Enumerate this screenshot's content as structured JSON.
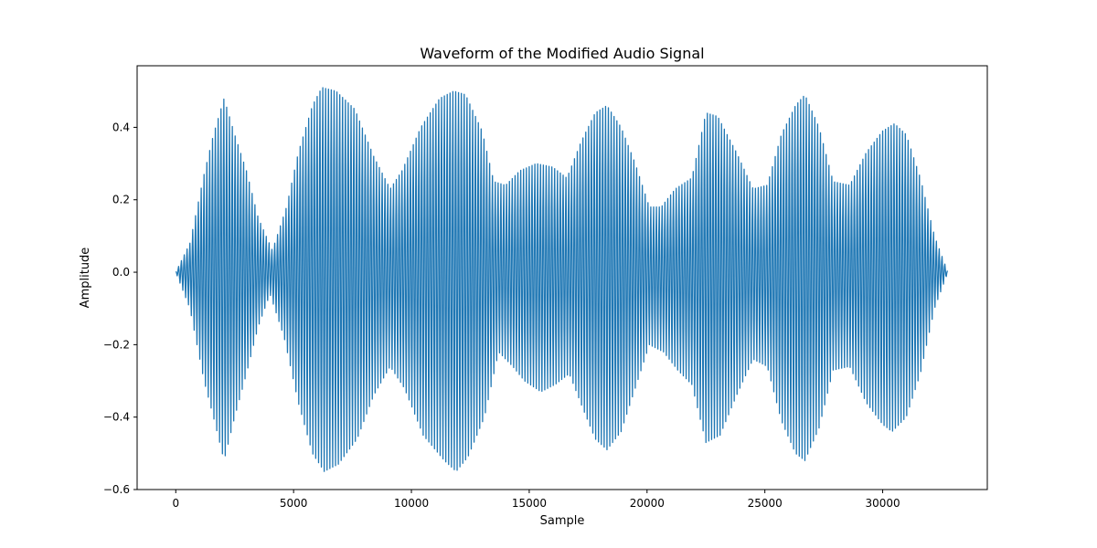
{
  "chart_data": {
    "type": "line",
    "title": "Waveform of the Modified Audio Signal",
    "xlabel": "Sample",
    "ylabel": "Amplitude",
    "xlim": [
      -1640,
      34440
    ],
    "ylim": [
      -0.6,
      0.57
    ],
    "x_ticks": [
      0,
      5000,
      10000,
      15000,
      20000,
      25000,
      30000
    ],
    "x_tick_labels": [
      "0",
      "5000",
      "10000",
      "15000",
      "20000",
      "25000",
      "30000"
    ],
    "y_ticks": [
      -0.6,
      -0.4,
      -0.2,
      0.0,
      0.2,
      0.4
    ],
    "y_tick_labels": [
      "−0.6",
      "−0.4",
      "−0.2",
      "0.0",
      "0.2",
      "0.4"
    ],
    "grid": false,
    "legend": "none",
    "series": [
      {
        "color": "#1f77b4",
        "x_start": 0,
        "x_end": 32767,
        "envelope_upper": [
          [
            0,
            0.0
          ],
          [
            600,
            0.08
          ],
          [
            1200,
            0.27
          ],
          [
            1600,
            0.38
          ],
          [
            2050,
            0.48
          ],
          [
            2500,
            0.38
          ],
          [
            3000,
            0.28
          ],
          [
            3500,
            0.15
          ],
          [
            4100,
            0.06
          ],
          [
            4700,
            0.18
          ],
          [
            5200,
            0.33
          ],
          [
            5800,
            0.46
          ],
          [
            6200,
            0.51
          ],
          [
            6800,
            0.5
          ],
          [
            7600,
            0.45
          ],
          [
            8400,
            0.32
          ],
          [
            9100,
            0.23
          ],
          [
            9600,
            0.28
          ],
          [
            10400,
            0.4
          ],
          [
            11200,
            0.48
          ],
          [
            11800,
            0.5
          ],
          [
            12300,
            0.49
          ],
          [
            13000,
            0.39
          ],
          [
            13500,
            0.25
          ],
          [
            14000,
            0.24
          ],
          [
            14600,
            0.28
          ],
          [
            15300,
            0.3
          ],
          [
            16000,
            0.29
          ],
          [
            16600,
            0.26
          ],
          [
            17200,
            0.36
          ],
          [
            17800,
            0.44
          ],
          [
            18300,
            0.46
          ],
          [
            18900,
            0.4
          ],
          [
            19500,
            0.3
          ],
          [
            20100,
            0.18
          ],
          [
            20600,
            0.18
          ],
          [
            21200,
            0.23
          ],
          [
            21900,
            0.26
          ],
          [
            22500,
            0.44
          ],
          [
            23000,
            0.43
          ],
          [
            23800,
            0.33
          ],
          [
            24500,
            0.23
          ],
          [
            25100,
            0.24
          ],
          [
            25700,
            0.38
          ],
          [
            26300,
            0.46
          ],
          [
            26700,
            0.49
          ],
          [
            27300,
            0.4
          ],
          [
            27900,
            0.25
          ],
          [
            28600,
            0.24
          ],
          [
            29300,
            0.33
          ],
          [
            30000,
            0.39
          ],
          [
            30500,
            0.41
          ],
          [
            31000,
            0.38
          ],
          [
            31600,
            0.26
          ],
          [
            32200,
            0.1
          ],
          [
            32767,
            0.0
          ]
        ],
        "envelope_lower": [
          [
            0,
            0.0
          ],
          [
            600,
            -0.1
          ],
          [
            1200,
            -0.3
          ],
          [
            1600,
            -0.4
          ],
          [
            2050,
            -0.52
          ],
          [
            2500,
            -0.4
          ],
          [
            3000,
            -0.28
          ],
          [
            3500,
            -0.15
          ],
          [
            4000,
            -0.06
          ],
          [
            4600,
            -0.18
          ],
          [
            5200,
            -0.36
          ],
          [
            5800,
            -0.5
          ],
          [
            6300,
            -0.55
          ],
          [
            6900,
            -0.53
          ],
          [
            7700,
            -0.46
          ],
          [
            8400,
            -0.34
          ],
          [
            9100,
            -0.26
          ],
          [
            9700,
            -0.32
          ],
          [
            10500,
            -0.45
          ],
          [
            11400,
            -0.52
          ],
          [
            11900,
            -0.55
          ],
          [
            12400,
            -0.51
          ],
          [
            13100,
            -0.4
          ],
          [
            13700,
            -0.22
          ],
          [
            14300,
            -0.26
          ],
          [
            14800,
            -0.3
          ],
          [
            15500,
            -0.33
          ],
          [
            16100,
            -0.31
          ],
          [
            16700,
            -0.28
          ],
          [
            17300,
            -0.38
          ],
          [
            17800,
            -0.46
          ],
          [
            18300,
            -0.49
          ],
          [
            18900,
            -0.44
          ],
          [
            19500,
            -0.32
          ],
          [
            20100,
            -0.2
          ],
          [
            20700,
            -0.22
          ],
          [
            21300,
            -0.27
          ],
          [
            21900,
            -0.31
          ],
          [
            22500,
            -0.47
          ],
          [
            23100,
            -0.45
          ],
          [
            23800,
            -0.34
          ],
          [
            24500,
            -0.24
          ],
          [
            25100,
            -0.26
          ],
          [
            25700,
            -0.41
          ],
          [
            26300,
            -0.5
          ],
          [
            26700,
            -0.52
          ],
          [
            27300,
            -0.43
          ],
          [
            27900,
            -0.27
          ],
          [
            28600,
            -0.26
          ],
          [
            29300,
            -0.36
          ],
          [
            30000,
            -0.42
          ],
          [
            30400,
            -0.44
          ],
          [
            31000,
            -0.4
          ],
          [
            31600,
            -0.28
          ],
          [
            32200,
            -0.1
          ],
          [
            32767,
            0.0
          ]
        ]
      }
    ]
  }
}
